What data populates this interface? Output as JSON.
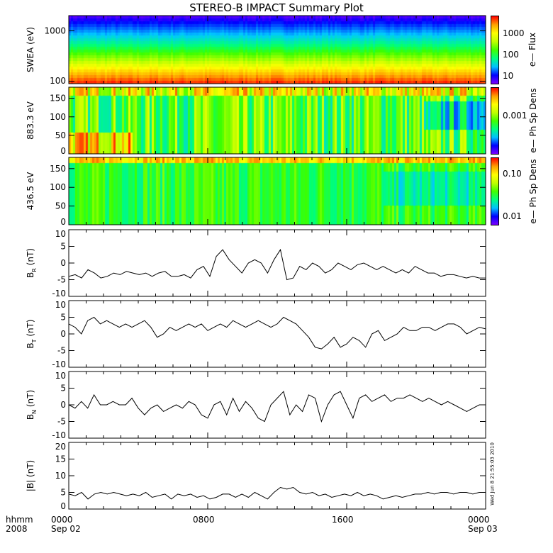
{
  "title": "STEREO-B IMPACT Summary Plot",
  "timestamp": "Wed Jun  8 21:55:03 2010",
  "x_axis": {
    "row1_label": "hhmm",
    "row2_label": "2008",
    "ticks": [
      "0000",
      "0800",
      "1600",
      "0000"
    ],
    "dates": [
      "Sep 02",
      "",
      "",
      "Sep 03"
    ]
  },
  "colors": {
    "line": "#000000"
  },
  "chart_data": [
    {
      "type": "heatmap",
      "name": "swea",
      "ylabel": "SWEA (eV)",
      "yscale": "log",
      "ylim": [
        90,
        2000
      ],
      "yticks": [
        "1000",
        "100"
      ],
      "colorbar": {
        "label": "e— Flux",
        "ticks": [
          "1000",
          "100",
          "10"
        ]
      }
    },
    {
      "type": "heatmap",
      "name": "pad883",
      "ylabel": "883.3 eV",
      "ylim": [
        0,
        180
      ],
      "yticks": [
        "150",
        "100",
        "50",
        "0"
      ],
      "colorbar": {
        "label": "e— Ph Sp Dens",
        "ticks": [
          "0.001"
        ]
      }
    },
    {
      "type": "heatmap",
      "name": "pad436",
      "ylabel": "436.5 eV",
      "ylim": [
        0,
        180
      ],
      "yticks": [
        "150",
        "100",
        "50",
        "0"
      ],
      "colorbar": {
        "label": "e— Ph Sp Dens",
        "ticks": [
          "0.10",
          "0.01"
        ]
      }
    },
    {
      "type": "line",
      "name": "br",
      "ylabel": "B",
      "ysub": "R",
      "yunit": " (nT)",
      "ylim": [
        -10,
        10
      ],
      "yticks": [
        "10",
        "5",
        "0",
        "-5",
        "-10"
      ],
      "xlim_hours": [
        0,
        24
      ],
      "values": [
        -4,
        -3.5,
        -4.5,
        -2,
        -3,
        -4.5,
        -4,
        -3,
        -3.5,
        -2.5,
        -3,
        -3.5,
        -3,
        -4,
        -3,
        -2.5,
        -4,
        -4,
        -3.5,
        -4.5,
        -2,
        -1,
        -4,
        2,
        4,
        1,
        -1,
        -3,
        0,
        1,
        0,
        -3,
        1,
        4,
        -5,
        -4.5,
        -1,
        -2,
        0,
        -1,
        -3,
        -2,
        0,
        -1,
        -2,
        -0.5,
        0,
        -1,
        -2,
        -1,
        -2,
        -3,
        -2,
        -3,
        -1,
        -2,
        -3,
        -3,
        -4,
        -3.5,
        -3.5,
        -4,
        -4.5,
        -4,
        -4.5,
        -4.5
      ]
    },
    {
      "type": "line",
      "name": "bt",
      "ylabel": "B",
      "ysub": "T",
      "yunit": " (nT)",
      "ylim": [
        -10,
        10
      ],
      "yticks": [
        "10",
        "5",
        "0",
        "-5",
        "-10"
      ],
      "xlim_hours": [
        0,
        24
      ],
      "values": [
        3,
        2,
        0,
        4,
        5,
        3,
        4,
        3,
        2,
        3,
        2,
        3,
        4,
        2,
        -1,
        0,
        2,
        1,
        2,
        3,
        2,
        3,
        1,
        2,
        3,
        2,
        4,
        3,
        2,
        3,
        4,
        3,
        2,
        3,
        5,
        4,
        3,
        1,
        -1,
        -4,
        -4.5,
        -3,
        -1,
        -4,
        -3,
        -1,
        -2,
        -4,
        0,
        1,
        -2,
        -1,
        0,
        2,
        1,
        1,
        2,
        2,
        1,
        2,
        3,
        3,
        2,
        0,
        1,
        2,
        1.5
      ]
    },
    {
      "type": "line",
      "name": "bn",
      "ylabel": "B",
      "ysub": "N",
      "yunit": " (nT)",
      "ylim": [
        -10,
        10
      ],
      "yticks": [
        "10",
        "5",
        "0",
        "-5",
        "-10"
      ],
      "xlim_hours": [
        0,
        24
      ],
      "values": [
        0,
        -1,
        1,
        -1,
        3,
        0,
        0,
        1,
        0,
        0,
        2,
        -1,
        -3,
        -1,
        0,
        -2,
        -1,
        0,
        -1,
        1,
        0,
        -3,
        -4,
        0,
        1,
        -3,
        2,
        -2,
        1,
        -1,
        -4,
        -5,
        0,
        2,
        4,
        -3,
        0,
        -2,
        3,
        2,
        -5,
        0,
        3,
        4,
        0,
        -4,
        2,
        3,
        1,
        2,
        3,
        1,
        2,
        2,
        3,
        2,
        1,
        2,
        1,
        0,
        1,
        0,
        -1,
        -2,
        -1,
        0,
        0
      ]
    },
    {
      "type": "line",
      "name": "bmag",
      "ylabel": "|B|",
      "ysub": "",
      "yunit": " (nT)",
      "ylim": [
        0,
        20
      ],
      "yticks": [
        "20",
        "15",
        "10",
        "5",
        "0"
      ],
      "xlim_hours": [
        0,
        24
      ],
      "values": [
        4.5,
        4,
        5,
        3,
        4.5,
        5,
        4.5,
        5,
        4.5,
        4,
        4.5,
        4,
        5,
        3.5,
        4,
        4.5,
        3,
        4.5,
        4,
        4.5,
        3.5,
        4,
        3,
        3.5,
        4.5,
        4.5,
        3.5,
        4.5,
        3.5,
        5,
        4,
        3,
        5,
        6.5,
        6,
        6.5,
        5,
        4.5,
        5,
        4,
        4.5,
        3.5,
        4,
        4.5,
        4,
        5,
        4,
        4.5,
        4,
        3,
        3.5,
        4,
        3.5,
        4,
        4.5,
        4.5,
        5,
        4.5,
        5,
        5,
        4.5,
        5,
        5,
        4.5,
        5,
        5
      ]
    }
  ]
}
